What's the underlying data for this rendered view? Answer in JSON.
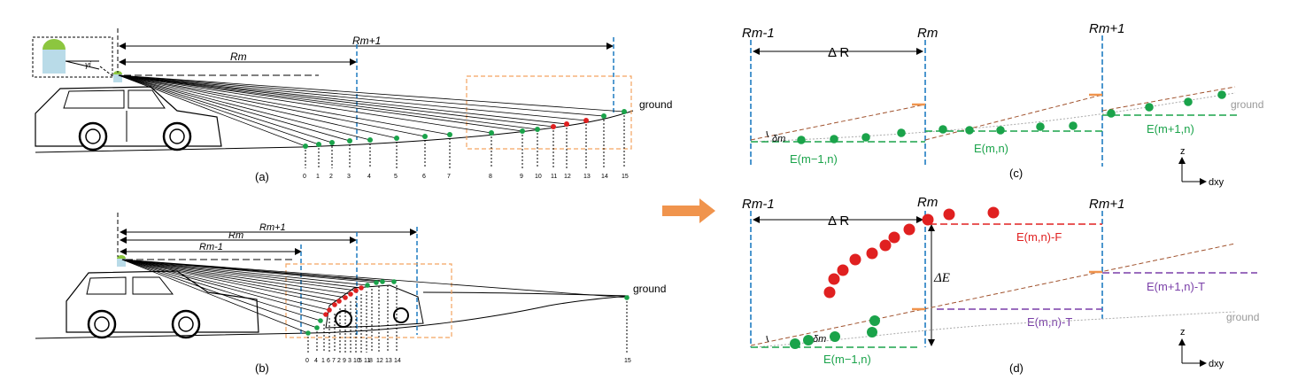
{
  "panels": {
    "a": {
      "label": "(a)",
      "range_labels": [
        "Rm",
        "Rm+1"
      ],
      "ground": "ground",
      "point_ids": [
        "0",
        "1",
        "2",
        "3",
        "4",
        "5",
        "6",
        "7",
        "8",
        "9",
        "10",
        "11",
        "12",
        "13",
        "14",
        "15"
      ],
      "angle_label": "γi"
    },
    "b": {
      "label": "(b)",
      "range_labels": [
        "Rm-1",
        "Rm",
        "Rm+1"
      ],
      "ground": "ground",
      "point_ids": [
        "0",
        "4",
        "1",
        "6",
        "7",
        "2",
        "9",
        "3",
        "10",
        "5",
        "11",
        "8",
        "12",
        "13",
        "14",
        "15"
      ]
    },
    "c": {
      "label": "(c)",
      "r_labels": [
        "Rm-1",
        "Rm",
        "Rm+1"
      ],
      "delta_r": "Δ R",
      "delta_angle": "δm",
      "e_labels": [
        "E(m−1,n)",
        "E(m,n)",
        "E(m+1,n)"
      ],
      "ground": "ground",
      "axis_z": "z",
      "axis_dxy": "dxy"
    },
    "d": {
      "label": "(d)",
      "r_labels": [
        "Rm-1",
        "Rm",
        "Rm+1"
      ],
      "delta_r": "Δ R",
      "delta_e": "ΔE",
      "delta_angle": "δm",
      "e_labels": [
        "E(m,n)-F",
        "E(m+1,n)-T",
        "E(m,n)-T",
        "E(m−1,n)"
      ],
      "ground": "ground",
      "axis_z": "z",
      "axis_dxy": "dxy"
    }
  },
  "colors": {
    "blue": "#1f7cc1",
    "green": "#1aa34a",
    "red": "#e02020",
    "orange": "#f4a460",
    "brown": "#a0522d",
    "purple": "#7a3fa8",
    "arrow": "#f0944d"
  }
}
